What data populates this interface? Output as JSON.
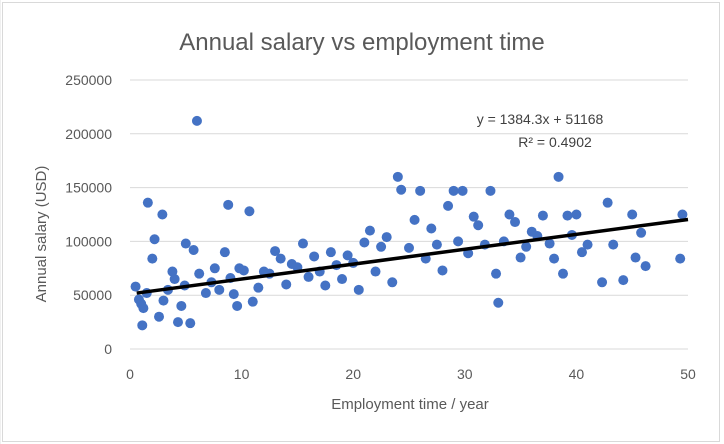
{
  "chart_data": {
    "type": "scatter",
    "title": "Annual salary vs employment time",
    "xlabel": "Employment time / year",
    "ylabel": "Annual salary (USD)",
    "xlim": [
      0,
      50
    ],
    "ylim": [
      0,
      250000
    ],
    "x_ticks": [
      0,
      10,
      20,
      30,
      40,
      50
    ],
    "y_ticks": [
      0,
      50000,
      100000,
      150000,
      200000,
      250000
    ],
    "x_tick_labels": [
      "0",
      "10",
      "20",
      "30",
      "40",
      "50"
    ],
    "y_tick_labels": [
      "0",
      "50000",
      "100000",
      "150000",
      "200000",
      "250000"
    ],
    "grid": "horizontal",
    "legend": "none",
    "colors": {
      "points": "#4472c4",
      "trendline": "#000000",
      "grid": "#d9d9d9",
      "text": "#595959"
    },
    "trendline": {
      "slope": 1384.3,
      "intercept": 51168,
      "equation": "y = 1384.3x + 51168",
      "r_squared": "R² = 0.4902"
    },
    "series": [
      {
        "points": [
          [
            0.5,
            58000
          ],
          [
            0.8,
            46000
          ],
          [
            1.0,
            42000
          ],
          [
            1.2,
            38000
          ],
          [
            1.5,
            52000
          ],
          [
            1.1,
            22000
          ],
          [
            1.6,
            136000
          ],
          [
            2.0,
            84000
          ],
          [
            2.2,
            102000
          ],
          [
            2.6,
            30000
          ],
          [
            2.9,
            125000
          ],
          [
            3.0,
            45000
          ],
          [
            3.4,
            55000
          ],
          [
            3.8,
            72000
          ],
          [
            4.0,
            65000
          ],
          [
            4.3,
            25000
          ],
          [
            4.6,
            40000
          ],
          [
            4.9,
            59000
          ],
          [
            5.0,
            98000
          ],
          [
            5.4,
            24000
          ],
          [
            5.7,
            92000
          ],
          [
            6.0,
            212000
          ],
          [
            6.2,
            70000
          ],
          [
            6.8,
            52000
          ],
          [
            7.3,
            62000
          ],
          [
            7.6,
            75000
          ],
          [
            8.0,
            55000
          ],
          [
            8.5,
            90000
          ],
          [
            8.8,
            134000
          ],
          [
            9.0,
            66000
          ],
          [
            9.3,
            51000
          ],
          [
            9.6,
            40000
          ],
          [
            9.8,
            75000
          ],
          [
            10.2,
            73000
          ],
          [
            10.7,
            128000
          ],
          [
            11.0,
            44000
          ],
          [
            11.5,
            57000
          ],
          [
            12.0,
            72000
          ],
          [
            12.5,
            70000
          ],
          [
            13.0,
            91000
          ],
          [
            13.5,
            84000
          ],
          [
            14.0,
            60000
          ],
          [
            14.5,
            79000
          ],
          [
            15.0,
            76000
          ],
          [
            15.5,
            98000
          ],
          [
            16.0,
            67000
          ],
          [
            16.5,
            86000
          ],
          [
            17.0,
            72000
          ],
          [
            17.5,
            59000
          ],
          [
            18.0,
            90000
          ],
          [
            18.5,
            78000
          ],
          [
            19.0,
            65000
          ],
          [
            19.5,
            87000
          ],
          [
            20.0,
            80000
          ],
          [
            20.5,
            55000
          ],
          [
            21.0,
            99000
          ],
          [
            21.5,
            110000
          ],
          [
            22.0,
            72000
          ],
          [
            22.5,
            95000
          ],
          [
            23.0,
            104000
          ],
          [
            23.5,
            62000
          ],
          [
            24.0,
            160000
          ],
          [
            24.3,
            148000
          ],
          [
            25.0,
            94000
          ],
          [
            25.5,
            120000
          ],
          [
            26.0,
            147000
          ],
          [
            26.5,
            84000
          ],
          [
            27.0,
            112000
          ],
          [
            27.5,
            97000
          ],
          [
            28.0,
            73000
          ],
          [
            28.5,
            133000
          ],
          [
            29.0,
            147000
          ],
          [
            29.4,
            100000
          ],
          [
            29.8,
            147000
          ],
          [
            30.3,
            89000
          ],
          [
            30.8,
            123000
          ],
          [
            31.2,
            115000
          ],
          [
            31.8,
            97000
          ],
          [
            32.3,
            147000
          ],
          [
            32.8,
            70000
          ],
          [
            33.0,
            43000
          ],
          [
            33.5,
            100000
          ],
          [
            34.0,
            125000
          ],
          [
            34.5,
            118000
          ],
          [
            35.0,
            85000
          ],
          [
            35.5,
            95000
          ],
          [
            36.0,
            109000
          ],
          [
            36.5,
            105000
          ],
          [
            37.0,
            124000
          ],
          [
            37.6,
            98000
          ],
          [
            38.0,
            84000
          ],
          [
            38.4,
            160000
          ],
          [
            38.8,
            70000
          ],
          [
            39.2,
            124000
          ],
          [
            39.6,
            106000
          ],
          [
            40.0,
            125000
          ],
          [
            40.5,
            90000
          ],
          [
            41.0,
            97000
          ],
          [
            42.3,
            62000
          ],
          [
            42.8,
            136000
          ],
          [
            43.3,
            97000
          ],
          [
            44.2,
            64000
          ],
          [
            45.0,
            125000
          ],
          [
            45.3,
            85000
          ],
          [
            45.8,
            108000
          ],
          [
            46.2,
            77000
          ],
          [
            49.3,
            84000
          ],
          [
            49.5,
            125000
          ]
        ]
      }
    ]
  }
}
